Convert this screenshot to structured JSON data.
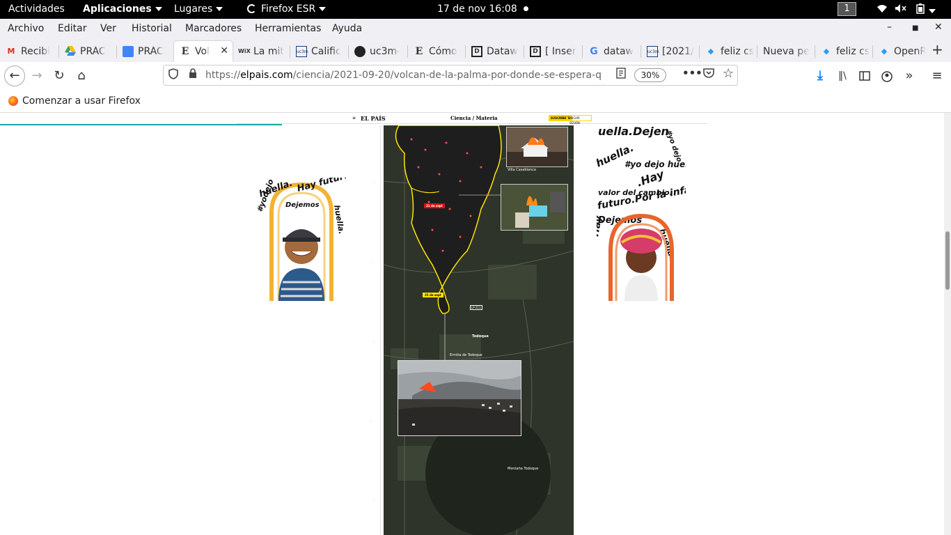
{
  "gnome": {
    "activities": "Actividades",
    "applications": "Aplicaciones",
    "places": "Lugares",
    "app_name": "Firefox ESR",
    "datetime": "17 de nov  16:08",
    "workspace": "1"
  },
  "menu": [
    "Archivo",
    "Editar",
    "Ver",
    "Historial",
    "Marcadores",
    "Herramientas",
    "Ayuda"
  ],
  "tabs": [
    {
      "label": "Recibi",
      "icon": "gmail-icon"
    },
    {
      "label": "PRÁC",
      "icon": "drive-icon"
    },
    {
      "label": "PRÁC",
      "icon": "docs-icon"
    },
    {
      "label": "Vol",
      "icon": "elpais-icon"
    },
    {
      "label": "La mit",
      "icon": "wix-icon"
    },
    {
      "label": "Calific",
      "icon": "uc3m-icon"
    },
    {
      "label": "uc3m-",
      "icon": "github-icon"
    },
    {
      "label": "Cómo",
      "icon": "elpais-icon"
    },
    {
      "label": "Dataw",
      "icon": "datawrapper-icon"
    },
    {
      "label": "[ Inser",
      "icon": "datawrapper-icon"
    },
    {
      "label": "dataw",
      "icon": "google-icon"
    },
    {
      "label": "[2021/",
      "icon": "uc3m-icon"
    },
    {
      "label": "feliz cs",
      "icon": "diamond-icon"
    },
    {
      "label": "Nueva pe",
      "icon": "none"
    },
    {
      "label": "feliz cs",
      "icon": "diamond-icon"
    },
    {
      "label": "OpenR",
      "icon": "diamond-icon"
    }
  ],
  "active_tab": 3,
  "url": {
    "prefix": "https://",
    "domain": "elpais.com",
    "path": "/ciencia/2021-09-20/volcan-de-la-palma-por-donde-se-espera-q",
    "zoom": "30%"
  },
  "bookmarks": [
    {
      "label": "Comenzar a usar Firefox"
    }
  ],
  "page": {
    "logo": "EL PAÍS",
    "section": "Ciencia / Materia",
    "subscribe": "SUSCRÍBETE",
    "login": "INICIAR SESIÓN"
  },
  "map": {
    "labels": {
      "villa": "Villa Casablanca",
      "todoque": "Todoque",
      "ermita": "Ermita de Todoque",
      "montana": "Montaña Todoque",
      "date_red": "21 de sept",
      "date_yellow": "25 de sept",
      "lp211": "LP-211"
    }
  },
  "colors": {
    "tab_bar": "#f0f0f4",
    "progress": "#1ca7a7",
    "lava_outline": "#ffe600",
    "map_bg": "#2e3429"
  }
}
